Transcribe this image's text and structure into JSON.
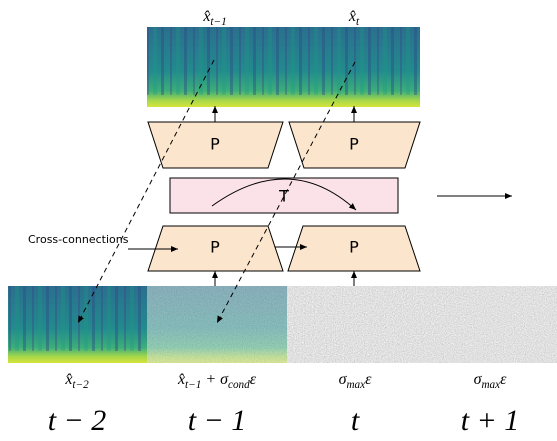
{
  "top_labels": [
    [
      {
        "text": "x̂"
      },
      {
        "sub": "t−1"
      }
    ],
    [
      {
        "text": "x̂"
      },
      {
        "sub": "t"
      }
    ]
  ],
  "upper_blocks": [
    "P",
    "P"
  ],
  "transformer": "T",
  "lower_blocks": [
    "P",
    "P"
  ],
  "cross_connections": "Cross-connections",
  "bottom_labels": [
    [
      {
        "text": "x̂"
      },
      {
        "sub": "t−2"
      }
    ],
    [
      {
        "text": "x̂"
      },
      {
        "sub": "t−1"
      },
      {
        "text": " + σ"
      },
      {
        "sub": "cond"
      },
      {
        "text": "ε"
      }
    ],
    [
      {
        "text": "σ"
      },
      {
        "sub": "max"
      },
      {
        "text": "ε"
      }
    ],
    [
      {
        "text": "σ"
      },
      {
        "sub": "max"
      },
      {
        "text": "ε"
      }
    ]
  ],
  "time_labels": [
    "t − 2",
    "t − 1",
    "t",
    "t + 1"
  ]
}
